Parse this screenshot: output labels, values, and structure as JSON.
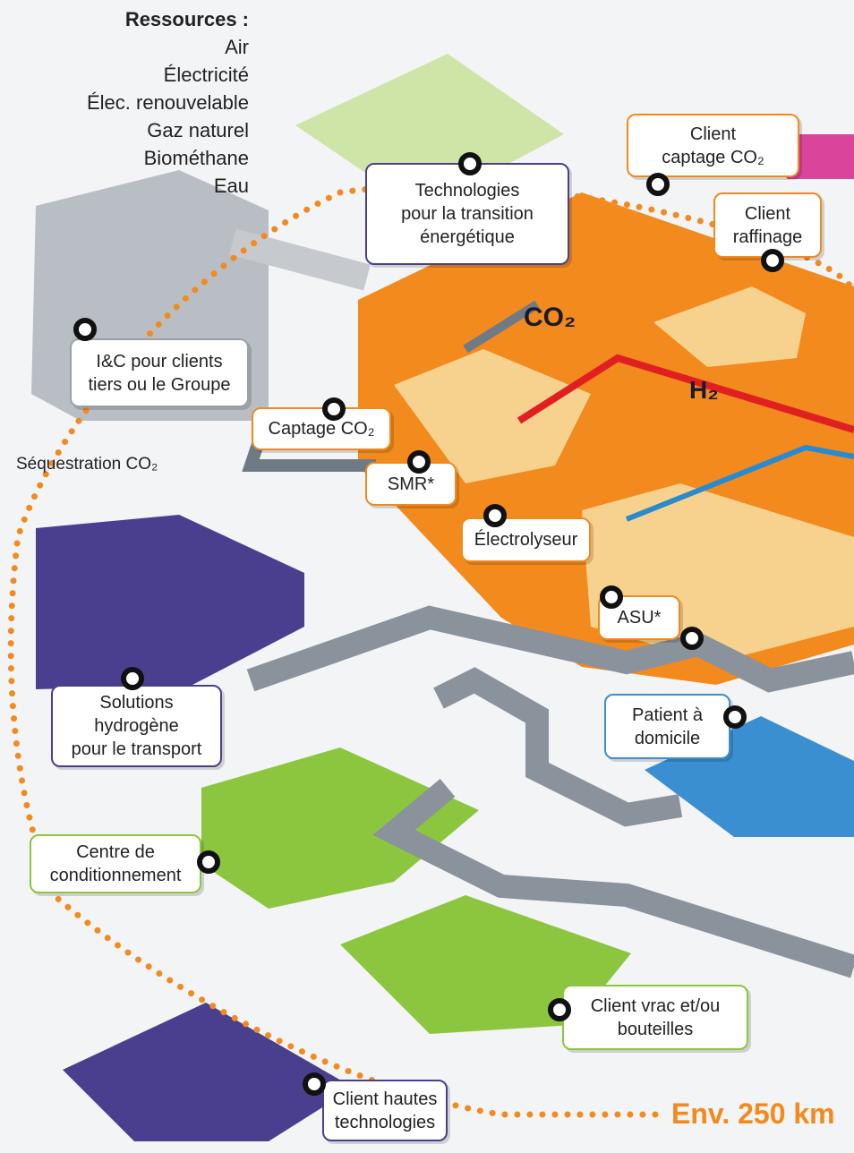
{
  "resources": {
    "title": "Ressources :",
    "items": [
      "Air",
      "Électricité",
      "Élec. renouvelable",
      "Gaz naturel",
      "Biométhane",
      "Eau"
    ]
  },
  "labels": {
    "technologies": [
      "Technologies",
      "pour la transition",
      "énergétique"
    ],
    "client_captage": [
      "Client",
      "captage CO₂"
    ],
    "raffinage": [
      "Client",
      "raffinage"
    ],
    "ic": [
      "I&C pour clients",
      "tiers ou le Groupe"
    ],
    "captage": [
      "Captage CO₂"
    ],
    "smr": [
      "SMR*"
    ],
    "electrolyseur": [
      "Électrolyseur"
    ],
    "asu": [
      "ASU*"
    ],
    "sequestration": "Séquestration CO₂",
    "solutions": [
      "Solutions",
      "hydrogène",
      "pour le transport"
    ],
    "patient": [
      "Patient à",
      "domicile"
    ],
    "centre": [
      "Centre de",
      "conditionnement"
    ],
    "vrac": [
      "Client vrac et/ou",
      "bouteilles"
    ],
    "hautes": [
      "Client hautes",
      "technologies"
    ],
    "co2": "CO₂",
    "h2": "H₂",
    "distance": "Env. 250 km"
  }
}
